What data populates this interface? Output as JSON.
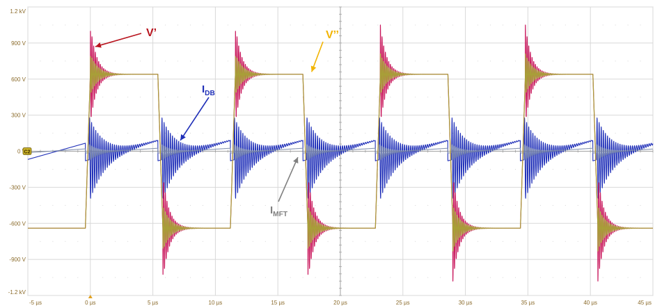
{
  "chart_data": {
    "type": "line",
    "title": "",
    "xlabel": "",
    "ylabel": "",
    "x_unit": "µs",
    "y_unit": "V",
    "xlim": [
      -5,
      45
    ],
    "ylim": [
      -1200,
      1200
    ],
    "grid": true,
    "x_ticks": [
      -5,
      0,
      5,
      10,
      15,
      20,
      25,
      30,
      35,
      40,
      45
    ],
    "x_tick_labels": [
      "-5 µs",
      "0 µs",
      "5 µs",
      "10 µs",
      "15 µs",
      "20 µs",
      "25 µs",
      "30 µs",
      "35 µs",
      "40 µs",
      "45 µs"
    ],
    "y_ticks": [
      1200,
      900,
      600,
      300,
      0,
      -300,
      -600,
      -900,
      -1200
    ],
    "y_tick_labels": [
      "1.2 kV",
      "900 V",
      "600 V",
      "300 V",
      "0 V",
      "-300 V",
      "-600 V",
      "-900 V",
      "-1.2 kV"
    ],
    "zero_marker_label": "C2",
    "period_us": 11.6,
    "rise_edges_us": [
      -0.4,
      11.2,
      22.8,
      34.4
    ],
    "fall_edges_us": [
      5.4,
      17.0,
      28.6,
      40.2
    ],
    "series": [
      {
        "name": "V’",
        "color": "#c8145a",
        "high_level": 640,
        "low_level": -640,
        "overshoot_peak": 1050,
        "undershoot_peak": -1080,
        "ringing_freq_mhz": 7.5,
        "ringing_decay_us": 0.5
      },
      {
        "name": "V’’",
        "color": "#a8a038",
        "high_level": 640,
        "low_level": -640,
        "overshoot_peak": 810,
        "undershoot_peak": -830,
        "ringing_freq_mhz": 7.5,
        "ringing_decay_us": 0.6
      },
      {
        "name": "I_DB",
        "color": "#1f2fb8",
        "ramp_start": -80,
        "ramp_end": 90,
        "spike_peak": 360,
        "ringing_freq_mhz": 6,
        "ringing_decay_us": 1.2
      },
      {
        "name": "I_MFT",
        "color": "#7a8aa8",
        "ramp_start": -15,
        "ramp_end": 25,
        "spike_peak": 70,
        "ringing_freq_mhz": 6,
        "ringing_decay_us": 0.8
      }
    ],
    "annotations": [
      {
        "label_main": "V’",
        "label_sub": "",
        "color": "#b8141e",
        "arrow_to_x_us": 0.4,
        "arrow_to_y_v": 870
      },
      {
        "label_main": "V’’",
        "label_sub": "",
        "color": "#f2b400",
        "arrow_to_x_us": 17.7,
        "arrow_to_y_v": 660
      },
      {
        "label_main": "I",
        "label_sub": "DB",
        "color": "#1f2fb8",
        "arrow_to_x_us": 7.2,
        "arrow_to_y_v": 90
      },
      {
        "label_main": "I",
        "label_sub": "MFT",
        "color": "#808080",
        "arrow_to_x_us": 16.6,
        "arrow_to_y_v": -50
      }
    ]
  }
}
